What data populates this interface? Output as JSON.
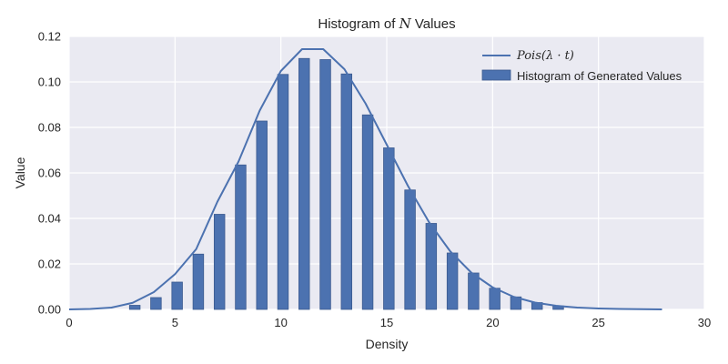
{
  "chart_data": {
    "type": "bar",
    "title": "Histogram of ",
    "title_math": "N",
    "title_suffix": " Values",
    "xlabel": "Density",
    "ylabel": "Value",
    "xlim": [
      0,
      30
    ],
    "ylim": [
      0,
      0.12
    ],
    "x_ticks": [
      0,
      5,
      10,
      15,
      20,
      25,
      30
    ],
    "y_ticks": [
      "0.00",
      "0.02",
      "0.04",
      "0.06",
      "0.08",
      "0.10",
      "0.12"
    ],
    "grid": true,
    "legend_position": "upper-right",
    "colors": {
      "background": "#EAEAF2",
      "grid": "#FFFFFF",
      "bar": "#4C72B0",
      "line": "#4C72B0"
    },
    "series": [
      {
        "name": "Pois(λ · t)",
        "type": "line",
        "x": [
          0,
          1,
          2,
          3,
          4,
          5,
          6,
          7,
          8,
          9,
          10,
          11,
          12,
          13,
          14,
          15,
          16,
          17,
          18,
          19,
          20,
          21,
          22,
          23,
          24,
          25,
          26,
          27,
          28
        ],
        "values": [
          0.0,
          0.0002,
          0.0008,
          0.0029,
          0.0076,
          0.0155,
          0.0265,
          0.0473,
          0.065,
          0.0874,
          0.1048,
          0.1144,
          0.1144,
          0.1056,
          0.0905,
          0.0724,
          0.0543,
          0.0383,
          0.0255,
          0.0161,
          0.0097,
          0.0055,
          0.003,
          0.0016,
          0.0008,
          0.0004,
          0.0002,
          0.0001,
          0.0
        ]
      },
      {
        "name": "Histogram of Generated Values",
        "type": "bar",
        "x": [
          3.1,
          4.1,
          5.1,
          6.1,
          7.1,
          8.1,
          9.1,
          10.1,
          11.1,
          12.1,
          13.1,
          14.1,
          15.1,
          16.1,
          17.1,
          18.1,
          19.1,
          20.1,
          21.1,
          22.1,
          23.1
        ],
        "values": [
          0.0018,
          0.0052,
          0.012,
          0.0243,
          0.0418,
          0.0635,
          0.0828,
          0.1033,
          0.1103,
          0.1098,
          0.1035,
          0.0855,
          0.071,
          0.0525,
          0.0378,
          0.0248,
          0.016,
          0.0093,
          0.0055,
          0.003,
          0.0015
        ],
        "bar_width": 0.5
      }
    ]
  }
}
